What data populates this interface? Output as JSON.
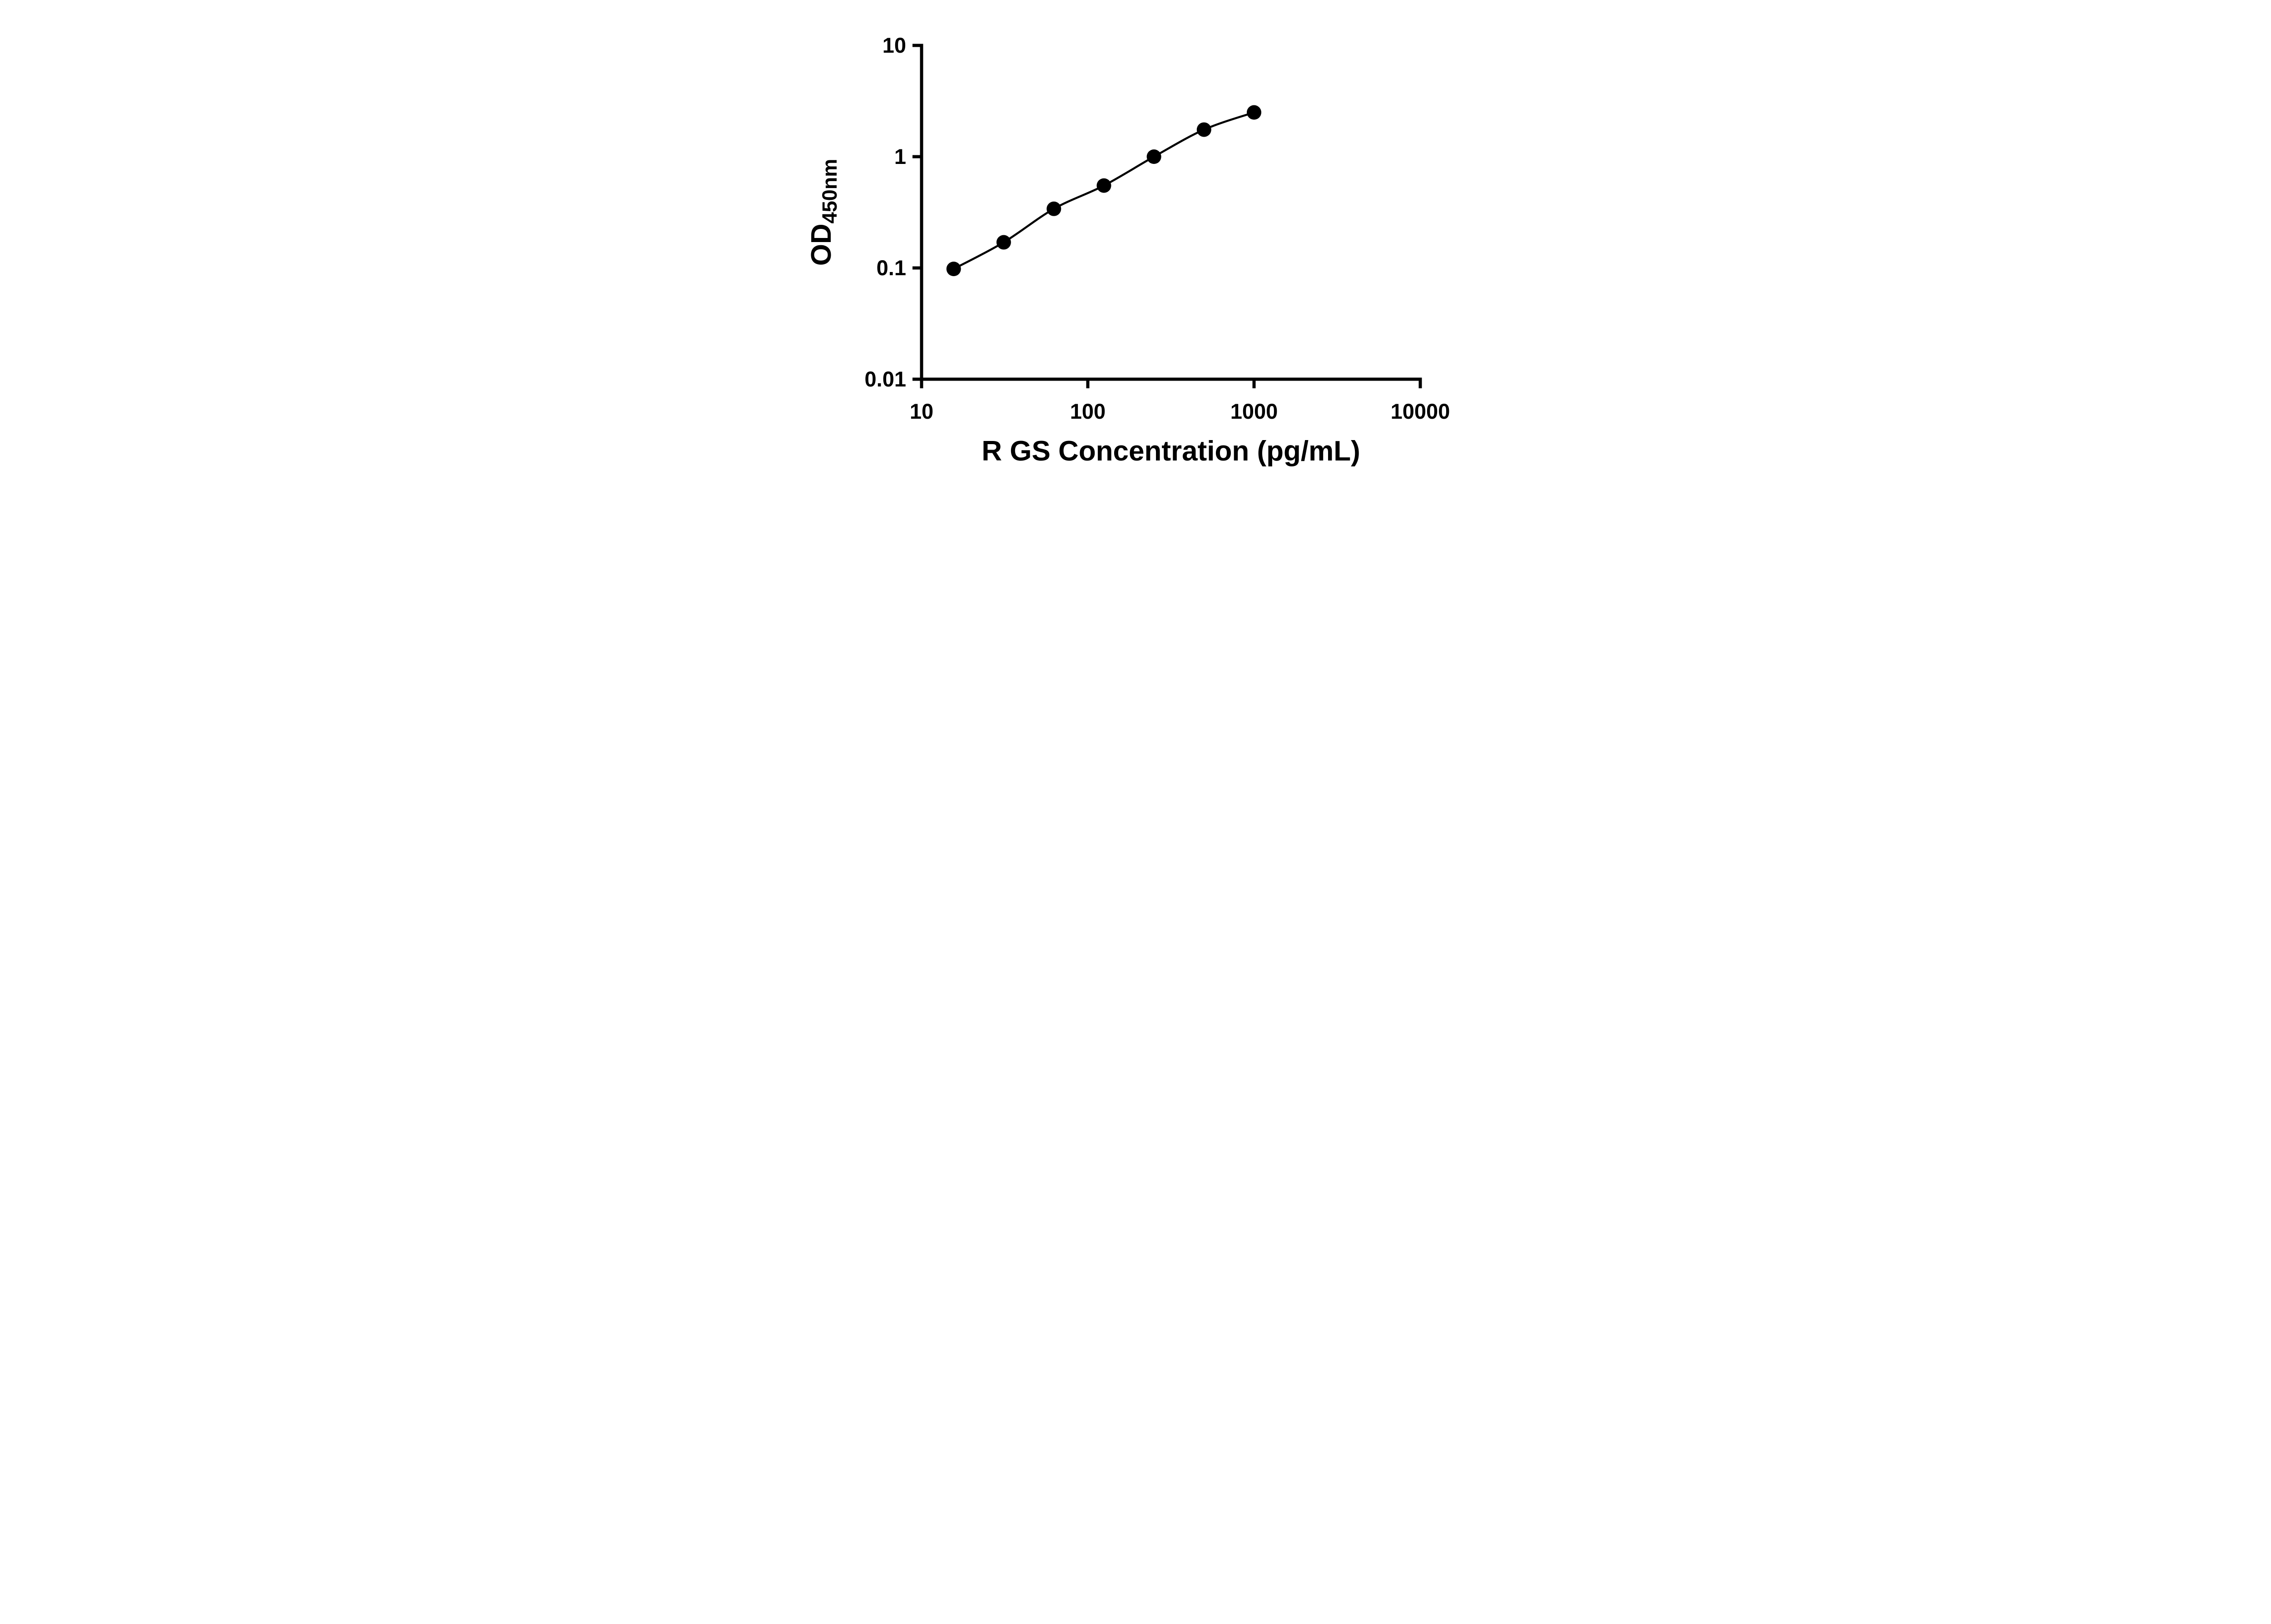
{
  "chart_data": {
    "type": "scatter",
    "title": "",
    "xlabel": "R GS Concentration (pg/mL)",
    "ylabel_main": "OD",
    "ylabel_sub": "450nm",
    "x_scale": "log",
    "y_scale": "log",
    "xlim": [
      10,
      10000
    ],
    "ylim": [
      0.01,
      10
    ],
    "x_ticks": [
      10,
      100,
      1000,
      10000
    ],
    "x_tick_labels": [
      "10",
      "100",
      "1000",
      "10000"
    ],
    "y_ticks": [
      0.01,
      0.1,
      1,
      10
    ],
    "y_tick_labels": [
      "0.01",
      "0.1",
      "1",
      "10"
    ],
    "grid": false,
    "legend": "none",
    "series": [
      {
        "x": [
          15.6,
          31.2,
          62.5,
          125,
          250,
          500,
          1000
        ],
        "y": [
          0.098,
          0.17,
          0.34,
          0.55,
          1.0,
          1.75,
          2.5
        ],
        "marker": "circle-filled",
        "line": "smooth",
        "color": "#000000"
      }
    ]
  },
  "colors": {
    "axis": "#000000",
    "marker": "#000000",
    "curve": "#000000",
    "background": "#ffffff"
  }
}
